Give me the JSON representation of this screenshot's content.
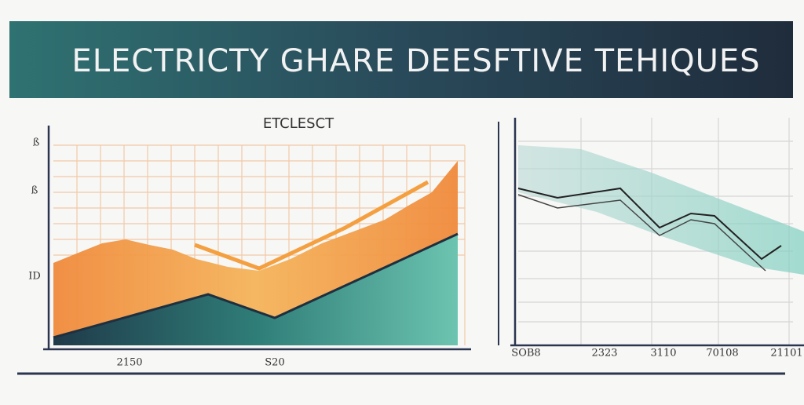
{
  "header": {
    "title": "ELECTRICTY GHARE DEESFTIVE TEHIQUES"
  },
  "left_panel": {
    "title": "ETCLESCT",
    "y_labels": [
      "ß",
      "ß",
      "ID"
    ],
    "x_labels": [
      "2150",
      "S20"
    ]
  },
  "right_panel": {
    "x_labels": [
      "SOB8",
      "2323",
      "3110",
      "70108",
      "21101"
    ]
  }
}
